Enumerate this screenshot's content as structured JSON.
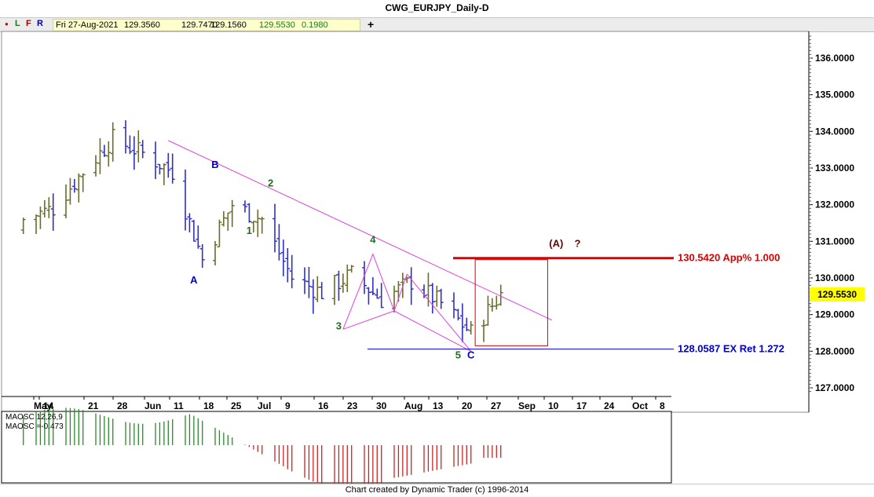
{
  "window": {
    "title": "CWG_EURJPY_Daily-D"
  },
  "toolbar": {
    "dot": "●",
    "btn_l": "L",
    "btn_f": "F",
    "btn_r": "R",
    "date": "Fri 27-Aug-2021",
    "open": "129.3560",
    "high": "129.7470",
    "low": "129.1560",
    "close": "129.5530",
    "change": "0.1980",
    "add": "+"
  },
  "colors": {
    "up_bar": "#6b6b2a",
    "down_bar": "#2e2ec8",
    "trendline": "#e040e0",
    "projection": "#dd0000",
    "extension": "#0000cc",
    "wave_green": "#1f6f1f",
    "wave_blue": "#0000cc",
    "wave_brown": "#6b0000",
    "osc_green": "#2a8a2a",
    "osc_red": "#cc2222",
    "price_box": "#ffff00"
  },
  "chart_data": {
    "type": "ohlc",
    "symbol": "CWG_EURJPY_Daily-D",
    "x_axis_labels": [
      "May",
      "14",
      "21",
      "28",
      "Jun",
      "11",
      "18",
      "25",
      "Jul",
      "9",
      "16",
      "23",
      "30",
      "Aug",
      "13",
      "20",
      "27",
      "Sep",
      "10",
      "17",
      "24",
      "Oct",
      "8"
    ],
    "y_ticks": [
      "136.0000",
      "135.0000",
      "134.0000",
      "133.0000",
      "132.0000",
      "131.0000",
      "130.0000",
      "129.0000",
      "128.0000",
      "127.0000"
    ],
    "ylim": [
      126.8,
      136.6
    ],
    "current_price": "129.5530",
    "price_series": [
      {
        "date": "2021-05-07",
        "close": 131.6
      },
      {
        "date": "2021-05-14",
        "close": 131.9
      },
      {
        "date": "2021-05-21",
        "close": 132.9
      },
      {
        "date": "2021-05-28",
        "close": 133.8
      },
      {
        "date": "2021-06-04",
        "close": 133.4
      },
      {
        "date": "2021-06-11",
        "close": 132.9
      },
      {
        "date": "2021-06-18",
        "close": 130.5
      },
      {
        "date": "2021-06-25",
        "close": 132.0
      },
      {
        "date": "2021-07-02",
        "close": 131.6
      },
      {
        "date": "2021-07-09",
        "close": 130.0
      },
      {
        "date": "2021-07-16",
        "close": 129.6
      },
      {
        "date": "2021-07-23",
        "close": 130.1
      },
      {
        "date": "2021-07-30",
        "close": 129.4
      },
      {
        "date": "2021-08-06",
        "close": 129.9
      },
      {
        "date": "2021-08-13",
        "close": 129.3
      },
      {
        "date": "2021-08-20",
        "close": 128.5
      },
      {
        "date": "2021-08-27",
        "close": 129.55
      }
    ],
    "wave_labels": [
      {
        "text": "A",
        "date": "2021-06-16",
        "price": 129.85
      },
      {
        "text": "B",
        "date": "2021-06-21",
        "price": 133.0
      },
      {
        "text": "1",
        "date": "2021-06-29",
        "price": 131.2
      },
      {
        "text": "2",
        "date": "2021-07-04",
        "price": 132.5
      },
      {
        "text": "3",
        "date": "2021-07-20",
        "price": 128.6
      },
      {
        "text": "4",
        "date": "2021-07-28",
        "price": 130.95
      },
      {
        "text": "5",
        "date": "2021-08-17",
        "price": 127.8
      },
      {
        "text": "C",
        "date": "2021-08-20",
        "price": 127.8
      },
      {
        "text": "(A)",
        "date": "2021-09-09",
        "price": 130.85
      },
      {
        "text": "?",
        "date": "2021-09-14",
        "price": 130.85
      }
    ],
    "levels": [
      {
        "label": "130.5420 App% 1.000",
        "value": 130.542
      },
      {
        "label": "128.0587 EX Ret 1.272",
        "value": 128.0587
      }
    ],
    "indicator": {
      "label_1": "MAOSC 12,26,9",
      "label_2": "MAOSC =-0.473",
      "value": -0.473
    },
    "credit": "Chart created by Dynamic Trader  (c) 1996-2014"
  }
}
